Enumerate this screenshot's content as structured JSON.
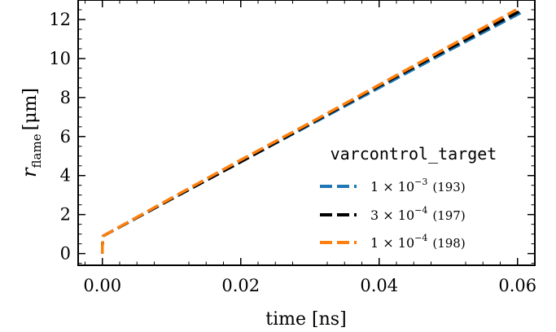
{
  "chart_data": {
    "type": "line",
    "xlabel": "time [ns]",
    "ylabel_main": "r",
    "ylabel_sub": "flame",
    "ylabel_unit": "[μm]",
    "xlim": [
      -0.0035,
      0.0625
    ],
    "ylim": [
      -0.6,
      13.0
    ],
    "xticks": [
      0.0,
      0.02,
      0.04,
      0.06
    ],
    "xtick_labels": [
      "0.00",
      "0.02",
      "0.04",
      "0.06"
    ],
    "yticks": [
      0,
      2,
      4,
      6,
      8,
      10,
      12
    ],
    "ytick_labels": [
      "0",
      "2",
      "4",
      "6",
      "8",
      "10",
      "12"
    ],
    "grid": false,
    "legend_title": "varcontrol_target",
    "legend_position": "lower-right",
    "series": [
      {
        "name": "1 × 10⁻³ (193)",
        "color": "#1f77b4",
        "x": [
          0.0,
          0.0,
          0.0001,
          0.01,
          0.02,
          0.03,
          0.04,
          0.05,
          0.0605
        ],
        "y": [
          0.0,
          0.4,
          0.9,
          2.8,
          4.7,
          6.6,
          8.5,
          10.4,
          12.35
        ]
      },
      {
        "name": "3 × 10⁻⁴ (197)",
        "color": "#000000",
        "x": [
          0.0,
          0.0,
          0.0001,
          0.01,
          0.02,
          0.03,
          0.04,
          0.05,
          0.0602
        ],
        "y": [
          0.0,
          0.4,
          0.9,
          2.8,
          4.7,
          6.65,
          8.6,
          10.5,
          12.4
        ]
      },
      {
        "name": "1 × 10⁻⁴ (198)",
        "color": "#ff7f0e",
        "x": [
          0.0,
          0.0,
          0.0001,
          0.01,
          0.02,
          0.03,
          0.04,
          0.05,
          0.0598
        ],
        "y": [
          0.0,
          0.4,
          0.9,
          2.85,
          4.8,
          6.7,
          8.65,
          10.6,
          12.5
        ]
      }
    ]
  }
}
